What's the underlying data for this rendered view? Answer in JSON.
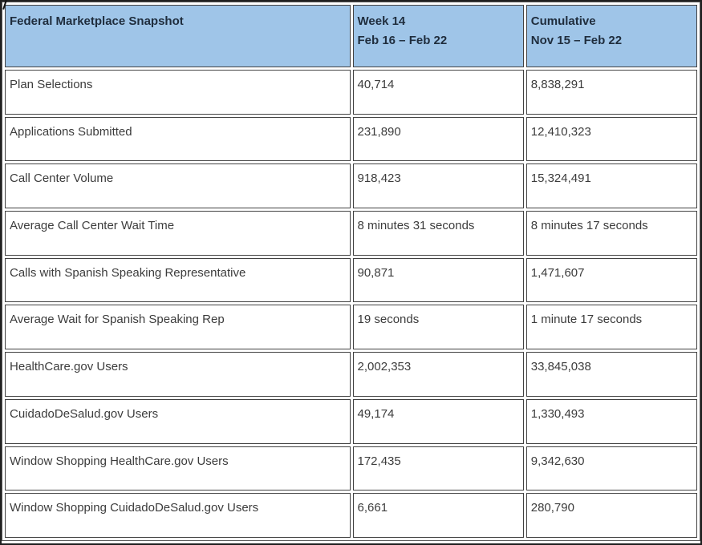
{
  "table": {
    "title": "Federal Marketplace Snapshot",
    "header": {
      "metric_label": "Federal Marketplace Snapshot",
      "week_line1": "Week 14",
      "week_line2": "Feb 16 – Feb 22",
      "cumulative_line1": "Cumulative",
      "cumulative_line2": "Nov 15 – Feb 22"
    },
    "rows": [
      {
        "label": "Plan Selections",
        "week": "40,714",
        "cumulative": "8,838,291"
      },
      {
        "label": "Applications Submitted",
        "week": "231,890",
        "cumulative": "12,410,323"
      },
      {
        "label": "Call Center Volume",
        "week": "918,423",
        "cumulative": "15,324,491"
      },
      {
        "label": "Average Call Center Wait Time",
        "week": "8 minutes 31 seconds",
        "cumulative": "8 minutes 17 seconds"
      },
      {
        "label": "Calls with Spanish Speaking Representative",
        "week": "90,871",
        "cumulative": "1,471,607"
      },
      {
        "label": "Average Wait for Spanish Speaking Rep",
        "week": "19 seconds",
        "cumulative": "1 minute 17 seconds"
      },
      {
        "label": "HealthCare.gov Users",
        "week": "2,002,353",
        "cumulative": "33,845,038"
      },
      {
        "label": "CuidadoDeSalud.gov Users",
        "week": "49,174",
        "cumulative": "1,330,493"
      },
      {
        "label": "Window Shopping HealthCare.gov Users",
        "week": "172,435",
        "cumulative": "9,342,630"
      },
      {
        "label": "Window Shopping CuidadoDeSalud.gov Users",
        "week": "6,661",
        "cumulative": "280,790"
      }
    ]
  },
  "colors": {
    "header_bg": "#9FC5E8",
    "header_text": "#1F2D3D",
    "body_text": "#3C3C3C",
    "cell_border": "#424242",
    "table_border": "#5A5A5A",
    "outer_frame": "#1F1F1F"
  }
}
